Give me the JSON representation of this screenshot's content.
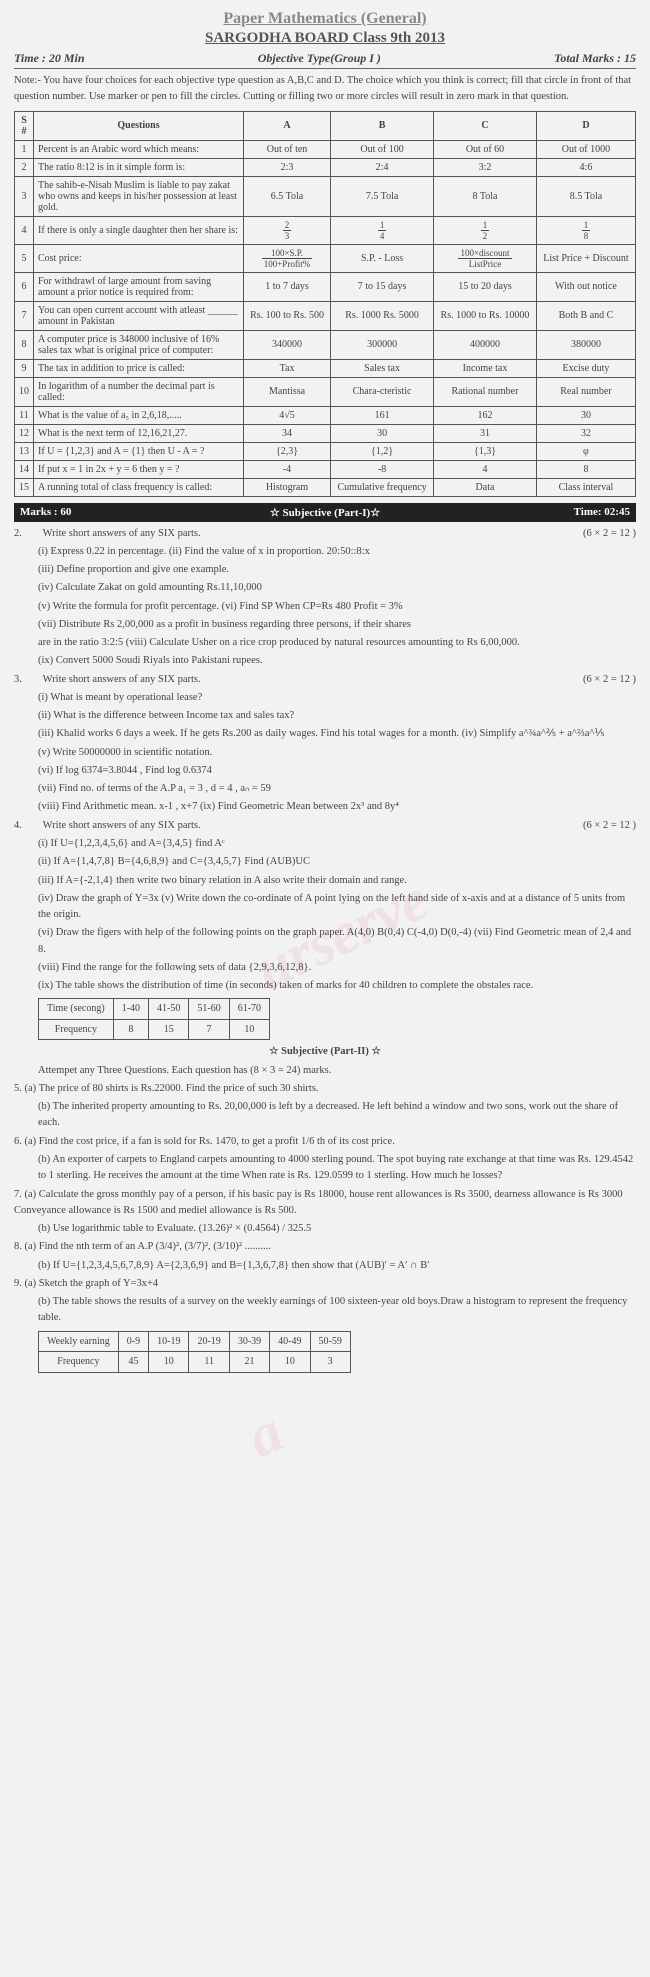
{
  "header": {
    "paper_title": "Paper Mathematics (General)",
    "board_title": "SARGODHA BOARD Class 9th 2013",
    "time": "Time : 20 Min",
    "type": "Objective Type(Group I )",
    "total": "Total Marks : 15"
  },
  "note": "Note:- You have four choices for each objective type question as A,B,C and D. The choice which you think is correct; fill that circle in front of that question number. Use marker or pen to fill the circles. Cutting or filling two or more circles will result in zero mark in that question.",
  "mcq_headers": [
    "S #",
    "Questions",
    "A",
    "B",
    "C",
    "D"
  ],
  "mcqs": [
    {
      "n": "1",
      "q": "Percent is an Arabic word which means:",
      "a": "Out of ten",
      "b": "Out of 100",
      "c": "Out of 60",
      "d": "Out of 1000"
    },
    {
      "n": "2",
      "q": "The ratio 8:12 is in it simple form is:",
      "a": "2:3",
      "b": "2:4",
      "c": "3:2",
      "d": "4:6"
    },
    {
      "n": "3",
      "q": "The sahib-e-Nisab Muslim is liable to pay zakat who owns and keeps in his/her possession at least gold.",
      "a": "6.5 Tola",
      "b": "7.5 Tola",
      "c": "8 Tola",
      "d": "8.5 Tola"
    },
    {
      "n": "4",
      "q": "If there is only a single daughter then her share is:",
      "a": "2/3",
      "b": "1/4",
      "c": "1/2",
      "d": "1/8"
    },
    {
      "n": "5",
      "q": "Cost price:",
      "a": "100×S.P./100+Profit%",
      "b": "S.P. - Loss",
      "c": "100×discount/ListPrice",
      "d": "List Price + Discount"
    },
    {
      "n": "6",
      "q": "For withdrawl of large amount from saving amount a prior notice is required from:",
      "a": "1 to 7 days",
      "b": "7 to 15 days",
      "c": "15 to 20 days",
      "d": "With out notice"
    },
    {
      "n": "7",
      "q": "You can open current account with atleast ______ amount in Pakistan",
      "a": "Rs. 100 to Rs. 500",
      "b": "Rs. 1000 Rs. 5000",
      "c": "Rs. 1000 to Rs. 10000",
      "d": "Both B and C"
    },
    {
      "n": "8",
      "q": "A computer price is 348000 inclusive of 16% sales tax what is original price of computer:",
      "a": "340000",
      "b": "300000",
      "c": "400000",
      "d": "380000"
    },
    {
      "n": "9",
      "q": "The tax in addition to price is called:",
      "a": "Tax",
      "b": "Sales tax",
      "c": "Income tax",
      "d": "Excise duty"
    },
    {
      "n": "10",
      "q": "In logarithm of a number the decimal part is called:",
      "a": "Mantissa",
      "b": "Chara-cteristic",
      "c": "Rational number",
      "d": "Real number"
    },
    {
      "n": "11",
      "q": "What is the value of a₅ in 2,6,18,.....",
      "a": "4√5",
      "b": "161",
      "c": "162",
      "d": "30"
    },
    {
      "n": "12",
      "q": "What is the next term of 12,16,21,27.",
      "a": "34",
      "b": "30",
      "c": "31",
      "d": "32"
    },
    {
      "n": "13",
      "q": "If U = {1,2,3} and A = {1} then U - A = ?",
      "a": "{2,3}",
      "b": "{1,2}",
      "c": "{1,3}",
      "d": "φ"
    },
    {
      "n": "14",
      "q": "If put x = 1 in 2x + y = 6 then y = ?",
      "a": "-4",
      "b": "-8",
      "c": "4",
      "d": "8"
    },
    {
      "n": "15",
      "q": "A running total of class frequency is called:",
      "a": "Histogram",
      "b": "Cumulative frequency",
      "c": "Data",
      "d": "Class interval"
    }
  ],
  "sec1_bar": {
    "left": "Marks : 60",
    "mid": "☆ Subjective (Part-I)☆",
    "right": "Time: 02:45"
  },
  "q2": {
    "head": "2.",
    "title": "Write short answers of any SIX parts.",
    "marks": "(6 × 2 = 12 )",
    "items": [
      "(i)   Express 0.22 in percentage.        (ii) Find the value of x in proportion. 20:50::8:x",
      "(iii) Define proportion and give one example.",
      "(iv)  Calculate Zakat on gold amounting Rs.11,10,000",
      "(v)   Write the formula for profit percentage. (vi) Find SP When CP=Rs 480 Profit = 3%",
      "(vii) Distribute Rs 2,00,000 as a profit in business regarding three persons, if their shares",
      "are in the ratio 3:2:5        (viii) Calculate Usher on a rice crop produced by natural resources amounting to Rs 6,00,000.",
      "(ix)  Convert 5000 Soudi Riyals into Pakistani rupees."
    ]
  },
  "q3": {
    "head": "3.",
    "title": "Write short answers of any SIX parts.",
    "marks": "(6 × 2 = 12 )",
    "items": [
      "(i)   What is meant by operational lease?",
      "(ii)  What is the difference between Income tax and sales tax?",
      "(iii) Khalid works 6 days a week. If he gets Rs.200 as daily wages. Find his total wages for a month.                              (iv) Simplify a^¾a^⅖ + a^⅔a^⅕",
      "(v)   Write 50000000 in scientific notation.",
      "(vi)  If log 6374=3.8044 , Find log 0.6374",
      "(vii) Find no. of terms of the A.P   a₁ = 3 , d = 4 , aₙ = 59",
      "(viii) Find Arithmetic mean.  x-1 , x+7 (ix) Find Geometric Mean between 2x³ and 8y⁴"
    ]
  },
  "q4": {
    "head": "4.",
    "title": "Write short answers of any SIX parts.",
    "marks": "(6 × 2 = 12 )",
    "items": [
      "(i)   If U={1,2,3,4,5,6} and A={3,4,5} find Aᶜ",
      "(ii)  If A={1,4,7,8}  B={4,6,8,9} and C={3,4,5,7} Find (AUB)UC",
      "(iii) If A={-2,1,4} then write two binary relation in A also write their domain and range.",
      "(iv)  Draw the graph of Y=3x         (v) Write down the co-ordinate of A point lying on the left hand side of x-axis and at a distance of 5 units from the origin.",
      "(vi)  Draw the figers with help of the following points on the graph paper. A(4,0) B(0,4) C(-4,0) D(0,-4)                          (vii) Find Geometric mean of 2,4 and 8.",
      "(viii) Find the range for the following sets of data {2,9,3,6,12,8}.",
      "(ix)  The table shows the distribution of time (in seconds) taken of marks for 40 children to complete the obstales race."
    ]
  },
  "q4_table": {
    "rows": [
      [
        "Time (secong)",
        "1-40",
        "41-50",
        "51-60",
        "61-70"
      ],
      [
        "Frequency",
        "8",
        "15",
        "7",
        "10"
      ]
    ]
  },
  "sec2_head": "☆ Subjective (Part-II) ☆",
  "sec2_note": "Attempet any Three Questions.  Each question has (8 × 3 = 24) marks.",
  "q5": {
    "head": "5.",
    "a": "(a)  The price of 80 shirts is Rs.22000. Find the price of such 30 shirts.",
    "b": "(b)  The inherited property amounting to Rs. 20,00,000 is left by a decreased. He left behind a window and two sons, work out the share of each."
  },
  "q6": {
    "head": "6.",
    "a": "(a)  Find the cost price, if a fan is sold for Rs. 1470, to get a profit 1/6 th of its cost price.",
    "b": "(b)  An exporter of carpets to England carpets amounting to 4000 sterling pound. The spot buying rate exchange at that time was Rs. 129.4542 to 1 sterling. He receives the amount at the time When rate is Rs. 129.0599 to 1 sterling. How much he losses?"
  },
  "q7": {
    "head": "7.",
    "a": "(a)  Calculate the gross monthly pay of a person, if his basic pay is Rs 18000, house rent allowances is Rs 3500, dearness allowance is Rs 3000 Conveyance allowance is Rs 1500 and mediel allowance is Rs 500.",
    "b": "(b)  Use logarithmic table to Evaluate. (13.26)² × (0.4564) / 325.5"
  },
  "q8": {
    "head": "8.",
    "a": "(a)  Find the nth term of an A.P (3/4)², (3/7)², (3/10)² ..........",
    "b": "(b)  If U={1,2,3,4,5,6,7,8,9} A={2,3,6,9} and B={1,3,6,7,8} then show that (AUB)′ = A′ ∩ B′"
  },
  "q9": {
    "head": "9.",
    "a": "(a)  Sketch the graph of Y=3x+4",
    "b": "(b)  The table shows the results of a survey on the weekly earnings of 100 sixteen-year old boys.Draw a histogram to represent the frequency table."
  },
  "q9_table": {
    "rows": [
      [
        "Weekly earning",
        "0-9",
        "10-19",
        "20-19",
        "30-39",
        "40-49",
        "50-59"
      ],
      [
        "Frequency",
        "45",
        "10",
        "11",
        "21",
        "10",
        "3"
      ]
    ]
  }
}
